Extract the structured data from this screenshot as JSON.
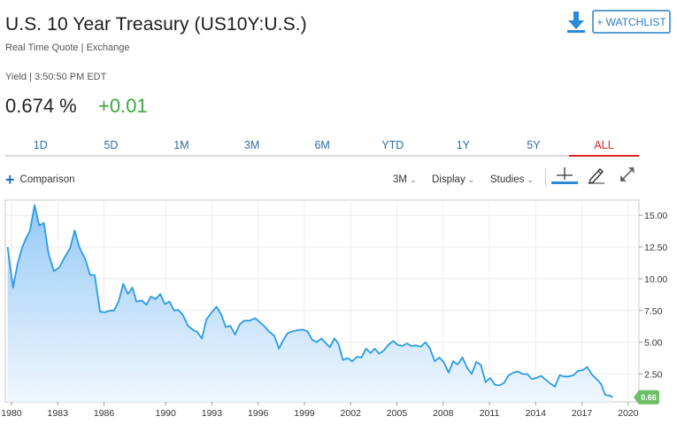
{
  "header": {
    "title": "U.S. 10 Year Treasury (US10Y:U.S.)",
    "subtitle": "Real Time Quote | Exchange",
    "yield_meta": "Yield | 3:50:50 PM EDT",
    "price": "0.674 %",
    "change": "+0.01",
    "watchlist_label": "+ WATCHLIST",
    "download_icon": "download-icon"
  },
  "colors": {
    "line": "#2b9be2",
    "fill_top": "#8ec6f5",
    "fill_bottom": "#eef6fe",
    "last_badge": "#6dbf67",
    "active_tab": "#dd2222",
    "change_positive": "#3ba53b"
  },
  "tabs": [
    {
      "label": "1D"
    },
    {
      "label": "5D"
    },
    {
      "label": "1M"
    },
    {
      "label": "3M"
    },
    {
      "label": "6M"
    },
    {
      "label": "YTD"
    },
    {
      "label": "1Y"
    },
    {
      "label": "5Y"
    },
    {
      "label": "ALL",
      "active": true
    }
  ],
  "toolbar": {
    "comparison_label": "Comparison",
    "interval_label": "3M",
    "display_label": "Display",
    "studies_label": "Studies",
    "icons": [
      "crosshair-icon",
      "pencil-icon",
      "expand-icon"
    ]
  },
  "chart_data": {
    "type": "area",
    "xlabel": "",
    "ylabel": "",
    "x_ticks": [
      "1980",
      "1983",
      "1986",
      "1990",
      "1993",
      "1996",
      "1999",
      "2002",
      "2005",
      "2008",
      "2011",
      "2014",
      "2017",
      "2020"
    ],
    "y_ticks": [
      "15.00",
      "12.50",
      "10.00",
      "7.50",
      "5.00",
      "2.50"
    ],
    "ylim": [
      0.3,
      16.2
    ],
    "xlim": [
      1979.6,
      2020.7
    ],
    "y_axis_position": "right",
    "grid": true,
    "last_value_label": "0.66",
    "series": [
      {
        "values": [
          [
            1979.75,
            12.5
          ],
          [
            1980.1,
            9.3
          ],
          [
            1980.4,
            11.2
          ],
          [
            1980.7,
            12.5
          ],
          [
            1980.95,
            13.2
          ],
          [
            1981.2,
            13.8
          ],
          [
            1981.5,
            15.8
          ],
          [
            1981.8,
            14.2
          ],
          [
            1982.1,
            14.4
          ],
          [
            1982.4,
            12.0
          ],
          [
            1982.75,
            10.6
          ],
          [
            1983.1,
            10.9
          ],
          [
            1983.45,
            11.7
          ],
          [
            1983.8,
            12.4
          ],
          [
            1984.1,
            13.8
          ],
          [
            1984.4,
            12.5
          ],
          [
            1984.8,
            11.5
          ],
          [
            1985.1,
            10.3
          ],
          [
            1985.4,
            10.3
          ],
          [
            1985.75,
            7.4
          ],
          [
            1986.05,
            7.35
          ],
          [
            1986.4,
            7.5
          ],
          [
            1986.65,
            7.5
          ],
          [
            1986.95,
            8.2
          ],
          [
            1987.25,
            9.6
          ],
          [
            1987.55,
            8.8
          ],
          [
            1987.85,
            9.3
          ],
          [
            1988.1,
            8.2
          ],
          [
            1988.45,
            8.3
          ],
          [
            1988.75,
            7.95
          ],
          [
            1989.05,
            8.6
          ],
          [
            1989.35,
            8.4
          ],
          [
            1989.65,
            8.8
          ],
          [
            1989.95,
            8.0
          ],
          [
            1990.25,
            8.2
          ],
          [
            1990.55,
            7.5
          ],
          [
            1990.8,
            7.55
          ],
          [
            1991.1,
            7.2
          ],
          [
            1991.45,
            6.3
          ],
          [
            1991.75,
            6.0
          ],
          [
            1992.05,
            5.8
          ],
          [
            1992.35,
            5.3
          ],
          [
            1992.65,
            6.8
          ],
          [
            1992.95,
            7.3
          ],
          [
            1993.3,
            7.8
          ],
          [
            1993.6,
            7.2
          ],
          [
            1993.9,
            6.2
          ],
          [
            1994.2,
            6.3
          ],
          [
            1994.5,
            5.6
          ],
          [
            1994.8,
            6.4
          ],
          [
            1995.1,
            6.7
          ],
          [
            1995.45,
            6.7
          ],
          [
            1995.8,
            6.9
          ],
          [
            1996.1,
            6.6
          ],
          [
            1996.45,
            6.2
          ],
          [
            1996.75,
            5.8
          ],
          [
            1997.05,
            5.5
          ],
          [
            1997.35,
            4.5
          ],
          [
            1997.6,
            5.1
          ],
          [
            1997.9,
            5.7
          ],
          [
            1998.2,
            5.85
          ],
          [
            1998.55,
            5.95
          ],
          [
            1998.9,
            6.0
          ],
          [
            1999.2,
            5.85
          ],
          [
            1999.5,
            5.2
          ],
          [
            1999.8,
            5.0
          ],
          [
            2000.1,
            5.3
          ],
          [
            2000.4,
            4.9
          ],
          [
            2000.65,
            4.6
          ],
          [
            2000.95,
            5.3
          ],
          [
            2001.2,
            4.9
          ],
          [
            2001.5,
            3.6
          ],
          [
            2001.8,
            3.75
          ],
          [
            2002.1,
            3.5
          ],
          [
            2002.4,
            3.85
          ],
          [
            2002.7,
            3.8
          ],
          [
            2003.0,
            4.5
          ],
          [
            2003.3,
            4.15
          ],
          [
            2003.55,
            4.5
          ],
          [
            2003.85,
            4.1
          ],
          [
            2004.15,
            4.35
          ],
          [
            2004.45,
            4.8
          ],
          [
            2004.75,
            5.1
          ],
          [
            2005.05,
            4.8
          ],
          [
            2005.35,
            4.7
          ],
          [
            2005.65,
            4.9
          ],
          [
            2005.95,
            4.7
          ],
          [
            2006.25,
            4.75
          ],
          [
            2006.55,
            4.65
          ],
          [
            2006.85,
            5.0
          ],
          [
            2007.15,
            4.5
          ],
          [
            2007.45,
            3.5
          ],
          [
            2007.75,
            3.8
          ],
          [
            2008.05,
            3.4
          ],
          [
            2008.35,
            2.6
          ],
          [
            2008.65,
            3.5
          ],
          [
            2008.95,
            3.25
          ],
          [
            2009.25,
            3.8
          ],
          [
            2009.55,
            3.0
          ],
          [
            2009.85,
            2.5
          ],
          [
            2010.15,
            3.45
          ],
          [
            2010.45,
            3.2
          ],
          [
            2010.75,
            1.85
          ],
          [
            2011.05,
            2.2
          ],
          [
            2011.35,
            1.65
          ],
          [
            2011.65,
            1.6
          ],
          [
            2011.95,
            1.8
          ],
          [
            2012.25,
            2.4
          ],
          [
            2012.55,
            2.6
          ],
          [
            2012.85,
            2.7
          ],
          [
            2013.15,
            2.5
          ],
          [
            2013.45,
            2.5
          ],
          [
            2013.75,
            2.1
          ],
          [
            2014.05,
            2.2
          ],
          [
            2014.35,
            2.35
          ],
          [
            2014.65,
            2.05
          ],
          [
            2014.95,
            1.75
          ],
          [
            2015.25,
            1.5
          ],
          [
            2015.55,
            2.4
          ],
          [
            2015.85,
            2.3
          ],
          [
            2016.15,
            2.3
          ],
          [
            2016.45,
            2.4
          ],
          [
            2016.75,
            2.75
          ],
          [
            2017.05,
            2.8
          ],
          [
            2017.35,
            3.05
          ],
          [
            2017.65,
            2.45
          ],
          [
            2017.95,
            2.1
          ],
          [
            2018.25,
            1.7
          ],
          [
            2018.5,
            0.85
          ],
          [
            2018.8,
            0.8
          ],
          [
            2019.0,
            0.67
          ]
        ]
      }
    ]
  }
}
